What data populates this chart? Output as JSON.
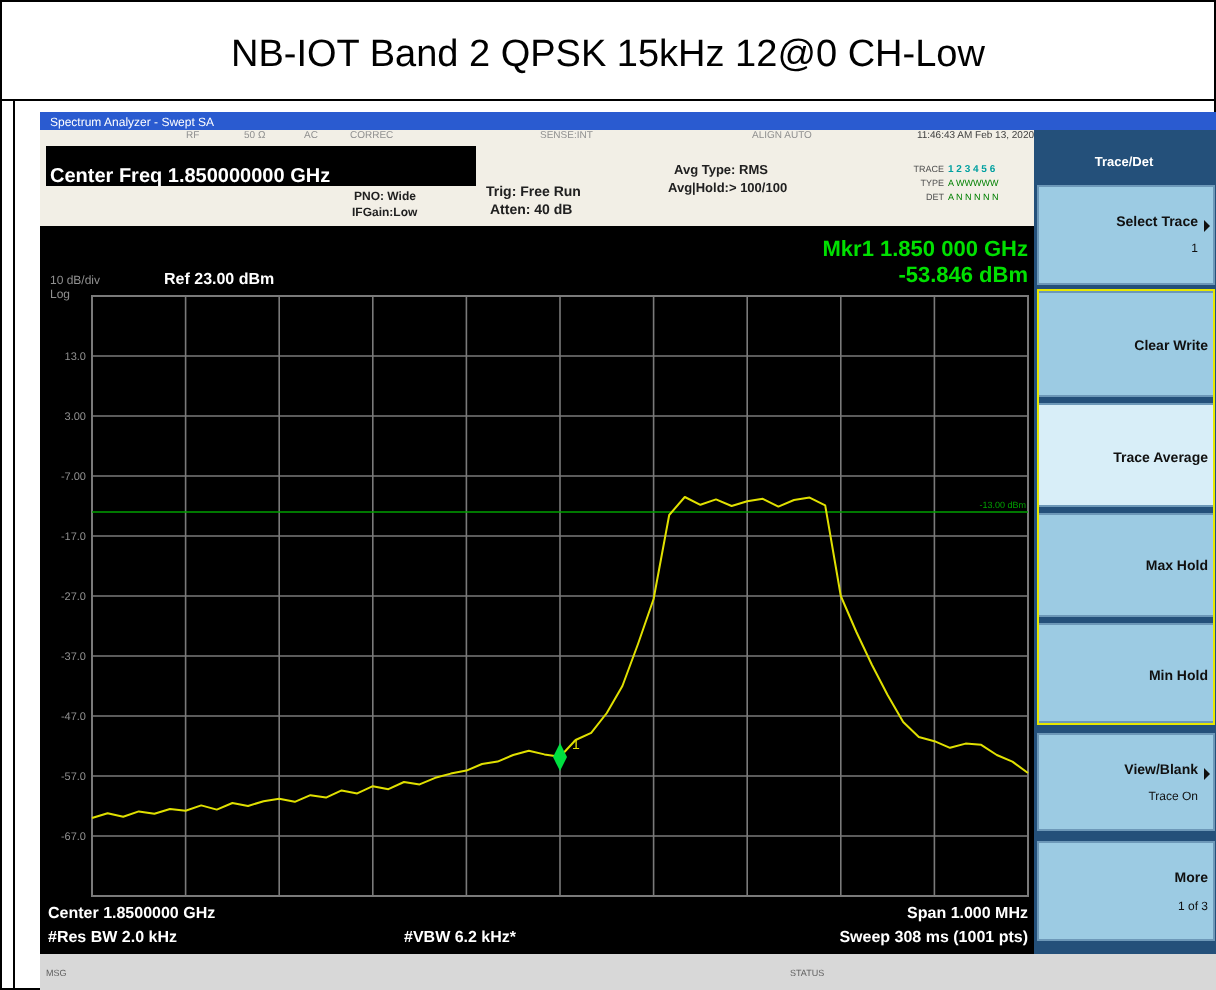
{
  "chart_data": {
    "type": "line",
    "title": "NB-IOT Band 2 QPSK 15kHz 12@0 CH-Low",
    "categories": [
      null,
      null,
      null,
      null,
      null,
      null,
      null,
      null,
      null,
      null,
      null,
      null,
      null,
      null,
      null,
      null,
      null,
      null,
      null,
      null,
      null,
      null,
      null,
      null,
      null,
      null,
      null,
      null,
      null,
      null,
      null,
      null,
      null,
      null,
      null,
      null,
      null,
      null,
      null,
      null,
      null,
      null,
      null,
      null,
      null,
      null,
      null,
      null,
      null,
      null,
      null,
      null,
      null,
      null,
      null,
      null,
      null,
      null,
      null,
      null,
      null
    ],
    "series": [
      {
        "color": "#e0e000",
        "values": [
          -64.0,
          -63.2,
          -63.8,
          -62.9,
          -63.3,
          -62.5,
          -62.8,
          -61.9,
          -62.6,
          -61.5,
          -62.0,
          -61.2,
          -60.8,
          -61.3,
          -60.2,
          -60.6,
          -59.4,
          -59.9,
          -58.7,
          -59.2,
          -58.0,
          -58.4,
          -57.3,
          -56.6,
          -56.1,
          -55.0,
          -54.6,
          -53.5,
          -52.8,
          -53.4,
          -53.8,
          -51.0,
          -49.8,
          -46.5,
          -42.0,
          -35.0,
          -27.5,
          -13.5,
          -10.5,
          -11.8,
          -10.9,
          -12.0,
          -11.2,
          -10.8,
          -12.1,
          -11.0,
          -10.6,
          -11.9,
          -27.0,
          -33.0,
          -38.5,
          -43.5,
          -48.0,
          -50.5,
          -51.2,
          -52.3,
          -51.6,
          -51.8,
          -53.5,
          -54.6,
          -56.5
        ]
      }
    ],
    "ylim": [
      -77,
      23
    ],
    "yticks": [
      {
        "value": 13,
        "label": "13.0"
      },
      {
        "value": 3,
        "label": "3.00"
      },
      {
        "value": -7,
        "label": "-7.00"
      },
      {
        "value": -17,
        "label": "-17.0"
      },
      {
        "value": -27,
        "label": "-27.0"
      },
      {
        "value": -37,
        "label": "-37.0"
      },
      {
        "value": -47,
        "label": "-47.0"
      },
      {
        "value": -57,
        "label": "-57.0"
      },
      {
        "value": -67,
        "label": "-67.0"
      }
    ],
    "grid": true,
    "line_style": "solid",
    "marker": "none",
    "ref_lines": [
      {
        "axis": "y",
        "value": -13,
        "label": "-13.00 dBm",
        "color": "#00a000"
      }
    ],
    "annotations": [
      "Spectrum Analyzer - Swept SA",
      "RF",
      "50 Ω",
      "AC",
      "CORREC",
      "SENSE:INT",
      "ALIGN AUTO",
      "11:46:43 AM Feb 13, 2020",
      "Center Freq 1.850000000 GHz",
      "PNO: Wide",
      "IFGain:Low",
      "Trig: Free Run",
      "Atten: 40 dB",
      "Avg Type: RMS",
      "Avg|Hold:> 100/100",
      "TRACE",
      "1 2 3 4 5 6",
      "TYPE",
      "A WWWWW",
      "DET",
      "A N N N N N",
      "Mkr1 1.850 000 GHz",
      "-53.846 dBm",
      "10 dB/div",
      "Log",
      "Ref 23.00 dBm",
      "Center 1.8500000 GHz",
      "#Res BW 2.0 kHz",
      "#VBW 6.2 kHz*",
      "Span 1.000 MHz",
      "Sweep  308 ms (1001 pts)",
      "MSG",
      "STATUS",
      "Trace/Det",
      "Select Trace",
      "1",
      "Clear Write",
      "Trace Average",
      "Max Hold",
      "Min Hold",
      "View/Blank",
      "Trace On",
      "More",
      "1 of 3",
      {
        "text": "1",
        "y": -53.846
      }
    ]
  }
}
